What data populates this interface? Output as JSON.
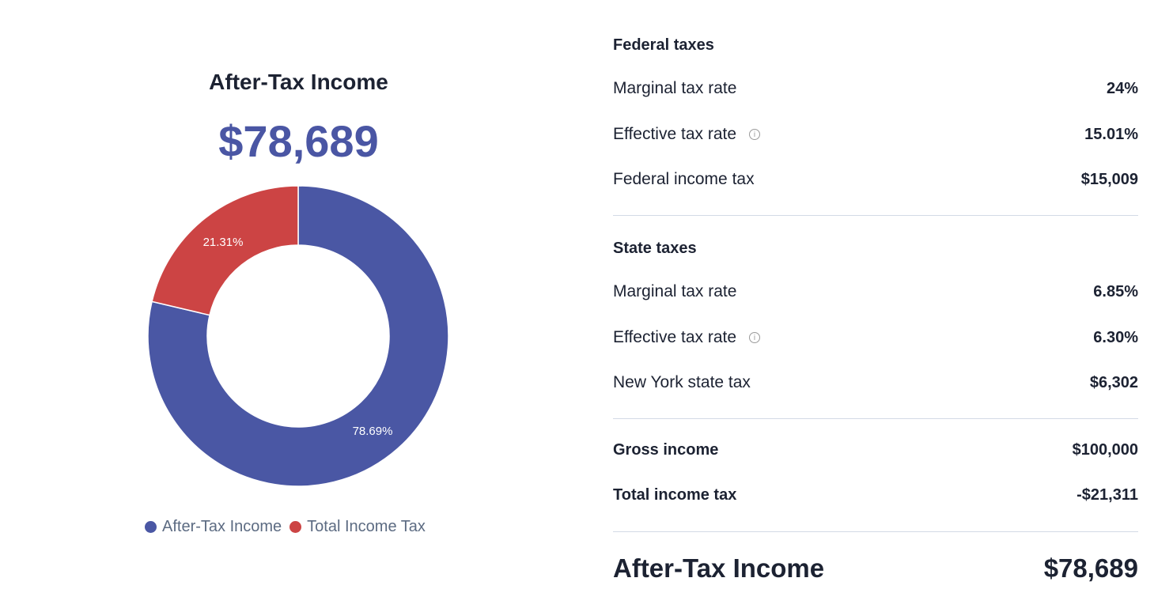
{
  "chart_panel": {
    "title": "After-Tax Income",
    "amount": "$78,689"
  },
  "colors": {
    "after_tax": "#4a57a4",
    "tax": "#cc4444",
    "text_dark": "#1c2232",
    "legend_text": "#5c6b82"
  },
  "chart_data": {
    "type": "pie",
    "subtype": "donut",
    "title": "After-Tax Income",
    "categories": [
      "After-Tax Income",
      "Total Income Tax"
    ],
    "values": [
      78.69,
      21.31
    ],
    "labels": [
      "78.69%",
      "21.31%"
    ],
    "colors": [
      "#4a57a4",
      "#cc4444"
    ],
    "legend_position": "bottom"
  },
  "legend": {
    "items": [
      {
        "label": "After-Tax Income",
        "color": "#4a57a4"
      },
      {
        "label": "Total Income Tax",
        "color": "#cc4444"
      }
    ]
  },
  "breakdown": {
    "federal": {
      "title": "Federal taxes",
      "rows": [
        {
          "label": "Marginal tax rate",
          "value": "24%"
        },
        {
          "label": "Effective tax rate",
          "value": "15.01%",
          "info": true
        },
        {
          "label": "Federal income tax",
          "value": "$15,009"
        }
      ]
    },
    "state": {
      "title": "State taxes",
      "rows": [
        {
          "label": "Marginal tax rate",
          "value": "6.85%"
        },
        {
          "label": "Effective tax rate",
          "value": "6.30%",
          "info": true
        },
        {
          "label": "New York state tax",
          "value": "$6,302"
        }
      ]
    },
    "summary": {
      "rows": [
        {
          "label": "Gross income",
          "value": "$100,000"
        },
        {
          "label": "Total income tax",
          "value": "-$21,311"
        }
      ]
    },
    "total": {
      "label": "After-Tax Income",
      "value": "$78,689"
    },
    "info_glyph": "i"
  }
}
